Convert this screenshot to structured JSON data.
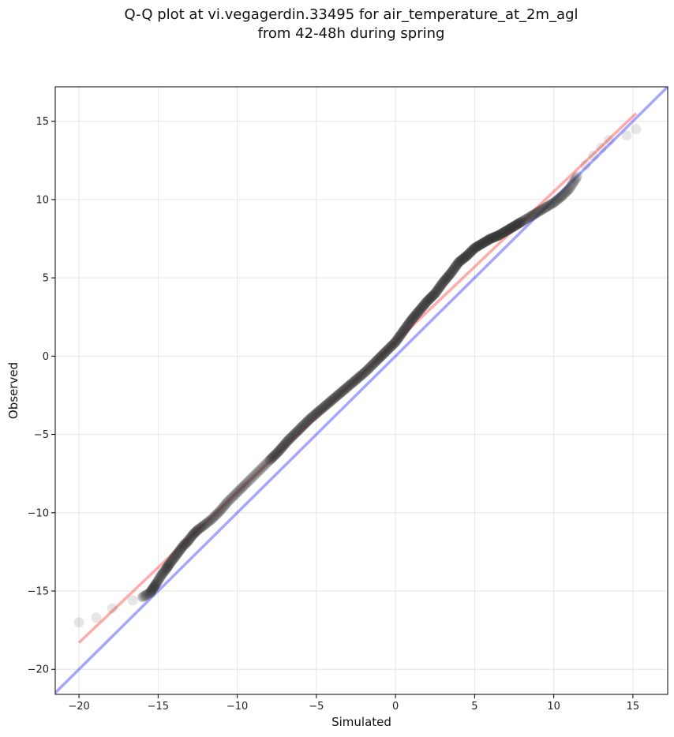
{
  "chart_data": {
    "type": "scatter",
    "title_lines": [
      "Q-Q plot at vi.vegagerdin.33495 for air_temperature_at_2m_agl",
      "from 42-48h during spring"
    ],
    "xlabel": "Simulated",
    "ylabel": "Observed",
    "xlim": [
      -21.5,
      17.2
    ],
    "ylim": [
      -21.6,
      17.2
    ],
    "xticks": [
      -20,
      -15,
      -10,
      -5,
      0,
      5,
      10,
      15
    ],
    "yticks": [
      -20,
      -15,
      -10,
      -5,
      0,
      5,
      10,
      15
    ],
    "xtick_labels": [
      "−20",
      "−15",
      "−10",
      "−5",
      "0",
      "5",
      "10",
      "15"
    ],
    "ytick_labels": [
      "−20",
      "−15",
      "−10",
      "−5",
      "0",
      "5",
      "10",
      "15"
    ],
    "grid": true,
    "colors": {
      "points": "#333333",
      "identity_line": "#0000ff",
      "fit_line": "#ff0000",
      "grid": "#e6e6e6"
    },
    "identity_line": {
      "x": [
        -21.5,
        17.2
      ],
      "y": [
        -21.5,
        17.2
      ]
    },
    "fit_line": {
      "x": [
        -20.0,
        15.2
      ],
      "y": [
        -18.3,
        15.5
      ]
    },
    "qq_points": {
      "x": [
        -20.0,
        -18.9,
        -17.9,
        -16.6,
        -16.0,
        -15.5,
        -15.3,
        -15.1,
        -14.8,
        -14.5,
        -14.3,
        -14.0,
        -13.7,
        -13.4,
        -13.1,
        -12.8,
        -12.5,
        -12.1,
        -11.6,
        -11.1,
        -10.6,
        -10.0,
        -9.4,
        -8.7,
        -8.0,
        -7.4,
        -6.8,
        -6.1,
        -5.4,
        -4.7,
        -4.0,
        -3.3,
        -2.6,
        -1.9,
        -1.2,
        -0.6,
        0.0,
        0.5,
        1.0,
        1.5,
        2.0,
        2.5,
        3.0,
        3.5,
        4.0,
        4.5,
        5.0,
        5.5,
        6.0,
        6.5,
        7.0,
        7.5,
        8.0,
        8.5,
        9.0,
        9.5,
        10.0,
        10.5,
        11.0,
        11.5,
        12.0,
        12.5,
        13.0,
        13.5,
        14.6,
        15.2
      ],
      "y": [
        -17.0,
        -16.7,
        -16.1,
        -15.6,
        -15.4,
        -15.1,
        -14.8,
        -14.5,
        -14.0,
        -13.6,
        -13.3,
        -12.9,
        -12.5,
        -12.1,
        -11.8,
        -11.4,
        -11.1,
        -10.8,
        -10.4,
        -9.9,
        -9.3,
        -8.7,
        -8.1,
        -7.4,
        -6.7,
        -6.1,
        -5.4,
        -4.7,
        -4.0,
        -3.4,
        -2.8,
        -2.2,
        -1.6,
        -1.0,
        -0.3,
        0.3,
        0.9,
        1.6,
        2.3,
        2.9,
        3.5,
        4.0,
        4.7,
        5.3,
        6.0,
        6.4,
        6.9,
        7.2,
        7.5,
        7.7,
        8.0,
        8.3,
        8.6,
        8.9,
        9.2,
        9.5,
        9.8,
        10.2,
        10.7,
        11.5,
        12.2,
        12.8,
        13.3,
        13.8,
        14.1,
        14.5
      ]
    }
  }
}
